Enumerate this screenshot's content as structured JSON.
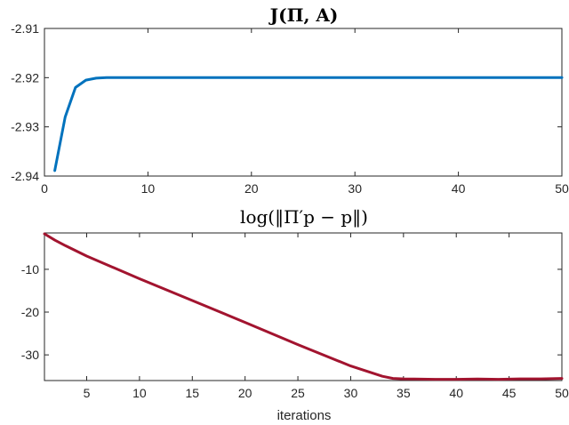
{
  "chart_data": [
    {
      "type": "line",
      "title": "J(Π, A)",
      "xlabel": "",
      "ylabel": "",
      "xlim": [
        0,
        50
      ],
      "ylim": [
        -2.94,
        -2.91
      ],
      "xticks": [
        0,
        10,
        20,
        30,
        40,
        50
      ],
      "xtick_labels": [
        "0",
        "10",
        "20",
        "30",
        "40",
        "50"
      ],
      "yticks": [
        -2.94,
        -2.93,
        -2.92,
        -2.91
      ],
      "ytick_labels": [
        "-2.94",
        "-2.93",
        "-2.92",
        "-2.91"
      ],
      "grid": false,
      "color": "#0072BD",
      "x": [
        1,
        2,
        3,
        4,
        5,
        6,
        7,
        8,
        10,
        15,
        20,
        25,
        30,
        35,
        40,
        45,
        50
      ],
      "y": [
        -2.9389,
        -2.928,
        -2.922,
        -2.9205,
        -2.9201,
        -2.92,
        -2.92,
        -2.92,
        -2.92,
        -2.92,
        -2.92,
        -2.92,
        -2.92,
        -2.92,
        -2.92,
        -2.92,
        -2.92
      ]
    },
    {
      "type": "line",
      "title": "log(‖Π′p − p‖)",
      "xlabel": "iterations",
      "ylabel": "",
      "xlim": [
        1,
        50
      ],
      "ylim": [
        -36,
        -1.5
      ],
      "xticks": [
        5,
        10,
        15,
        20,
        25,
        30,
        35,
        40,
        45,
        50
      ],
      "xtick_labels": [
        "5",
        "10",
        "15",
        "20",
        "25",
        "30",
        "35",
        "40",
        "45",
        "50"
      ],
      "yticks": [
        -10,
        -20,
        -30
      ],
      "ytick_labels": [
        "-10",
        "-20",
        "-30"
      ],
      "grid": false,
      "color": "#A2142F",
      "x": [
        1,
        2,
        3,
        5,
        10,
        15,
        20,
        25,
        30,
        33,
        34,
        35,
        36,
        38,
        40,
        42,
        44,
        46,
        48,
        50
      ],
      "y": [
        -1.7,
        -3.2,
        -4.5,
        -6.9,
        -12.2,
        -17.3,
        -22.4,
        -27.6,
        -32.6,
        -35.0,
        -35.5,
        -35.6,
        -35.65,
        -35.7,
        -35.7,
        -35.65,
        -35.7,
        -35.6,
        -35.6,
        -35.5
      ]
    }
  ]
}
